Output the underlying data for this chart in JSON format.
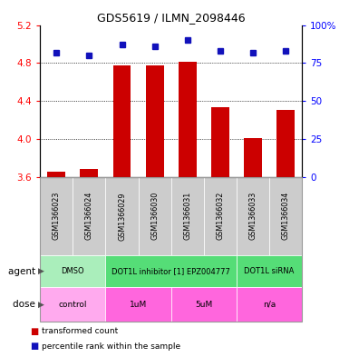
{
  "title": "GDS5619 / ILMN_2098446",
  "samples": [
    "GSM1366023",
    "GSM1366024",
    "GSM1366029",
    "GSM1366030",
    "GSM1366031",
    "GSM1366032",
    "GSM1366033",
    "GSM1366034"
  ],
  "bar_values": [
    3.65,
    3.68,
    4.77,
    4.77,
    4.81,
    4.33,
    4.01,
    4.3
  ],
  "dot_values": [
    82,
    80,
    87,
    86,
    90,
    83,
    82,
    83
  ],
  "ylim_left": [
    3.6,
    5.2
  ],
  "ylim_right": [
    0,
    100
  ],
  "yticks_left": [
    3.6,
    4.0,
    4.4,
    4.8,
    5.2
  ],
  "yticks_right": [
    0,
    25,
    50,
    75,
    100
  ],
  "ytick_right_labels": [
    "0",
    "25",
    "50",
    "75",
    "100%"
  ],
  "bar_color": "#cc0000",
  "dot_color": "#1111bb",
  "agent_spans": [
    {
      "start": 0,
      "end": 2,
      "label": "DMSO",
      "color": "#aaeebb"
    },
    {
      "start": 2,
      "end": 6,
      "label": "DOT1L inhibitor [1] EPZ004777",
      "color": "#55dd77"
    },
    {
      "start": 6,
      "end": 8,
      "label": "DOT1L siRNA",
      "color": "#55dd77"
    }
  ],
  "dose_spans": [
    {
      "start": 0,
      "end": 2,
      "label": "control",
      "color": "#ffaaee"
    },
    {
      "start": 2,
      "end": 4,
      "label": "1uM",
      "color": "#ff66dd"
    },
    {
      "start": 4,
      "end": 6,
      "label": "5uM",
      "color": "#ff66dd"
    },
    {
      "start": 6,
      "end": 8,
      "label": "n/a",
      "color": "#ff66dd"
    }
  ],
  "hgrid_vals": [
    4.0,
    4.4,
    4.8
  ],
  "legend_bar_label": "transformed count",
  "legend_dot_label": "percentile rank within the sample",
  "agent_row_label": "agent",
  "dose_row_label": "dose",
  "sample_bg_color": "#cccccc",
  "sample_divider_color": "#bbbbbb"
}
